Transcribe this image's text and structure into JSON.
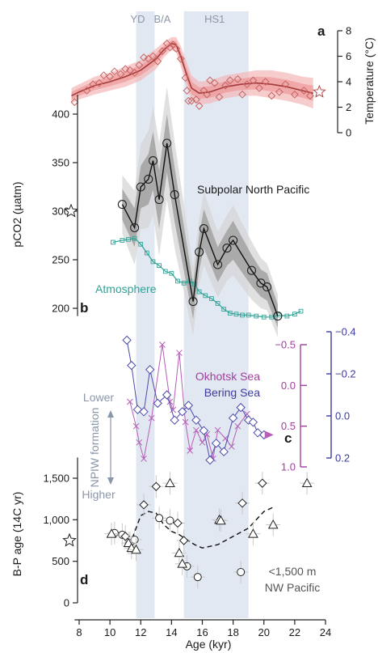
{
  "chart_data": {
    "type": "multi-panel-line-scatter",
    "x_axis": {
      "label": "Age (kyr)",
      "range": [
        7,
        24
      ],
      "ticks": [
        8,
        10,
        12,
        14,
        16,
        18,
        20,
        22,
        24
      ]
    },
    "bands": [
      {
        "label": "YD",
        "x": [
          11.7,
          12.9
        ]
      },
      {
        "label": "B/A",
        "x": [
          12.9,
          14.7
        ]
      },
      {
        "label": "HS1",
        "x": [
          14.8,
          19.0
        ]
      }
    ],
    "band_labels": [
      {
        "text": "YD",
        "x": 11.8
      },
      {
        "text": "B/A",
        "x": 13.4
      },
      {
        "text": "HS1",
        "x": 16.8
      }
    ],
    "panels": {
      "a": {
        "letter": "a",
        "y_label": "Temperature (°C)",
        "y_range": [
          0,
          8
        ],
        "y_ticks": [
          "0",
          "2",
          "4",
          "6",
          "8"
        ],
        "x_ticks": [
          "8",
          "10",
          "12",
          "14",
          "16",
          "18",
          "20",
          "22",
          "24"
        ],
        "color": "#e06262",
        "star_value": 3.2,
        "mean_line": [
          [
            7.5,
            2.9
          ],
          [
            8,
            3.2
          ],
          [
            9,
            3.7
          ],
          [
            10,
            4.0
          ],
          [
            11,
            4.4
          ],
          [
            12,
            4.9
          ],
          [
            13,
            5.8
          ],
          [
            13.5,
            6.5
          ],
          [
            14,
            7.0
          ],
          [
            14.3,
            6.9
          ],
          [
            14.6,
            6.0
          ],
          [
            15,
            4.5
          ],
          [
            15.3,
            3.5
          ],
          [
            15.8,
            3.1
          ],
          [
            16.5,
            3.2
          ],
          [
            17.5,
            3.6
          ],
          [
            18.5,
            3.8
          ],
          [
            19.5,
            3.9
          ],
          [
            20.5,
            3.8
          ],
          [
            21.5,
            3.6
          ],
          [
            22.5,
            3.3
          ],
          [
            23.2,
            3.1
          ]
        ],
        "band_halfwidth": [
          0.6,
          0.6,
          0.7,
          0.7,
          0.8,
          0.8,
          0.8,
          0.6,
          0.5,
          0.6,
          0.8,
          1.0,
          1.0,
          0.9,
          0.9,
          0.9,
          0.9,
          1.0,
          1.1,
          1.1,
          1.1,
          1.2
        ],
        "points": [
          [
            7.7,
            2.4
          ],
          [
            8.5,
            3.3
          ],
          [
            8.9,
            3.8
          ],
          [
            9.3,
            3.9
          ],
          [
            9.6,
            4.5
          ],
          [
            10.0,
            4.4
          ],
          [
            10.3,
            4.8
          ],
          [
            10.7,
            4.6
          ],
          [
            11.0,
            5.0
          ],
          [
            11.3,
            4.9
          ],
          [
            11.6,
            4.7
          ],
          [
            11.9,
            5.3
          ],
          [
            12.2,
            5.9
          ],
          [
            12.5,
            5.8
          ],
          [
            12.8,
            6.0
          ],
          [
            13.1,
            5.6
          ],
          [
            13.4,
            6.4
          ],
          [
            13.7,
            7.0
          ],
          [
            13.9,
            6.7
          ],
          [
            14.1,
            6.9
          ],
          [
            14.3,
            6.6
          ],
          [
            14.6,
            5.8
          ],
          [
            14.9,
            4.3
          ],
          [
            15.0,
            3.3
          ],
          [
            15.1,
            2.5
          ],
          [
            15.3,
            2.5
          ],
          [
            15.6,
            2.6
          ],
          [
            15.8,
            2.1
          ],
          [
            16.1,
            3.3
          ],
          [
            16.3,
            3.0
          ],
          [
            16.5,
            4.1
          ],
          [
            16.8,
            3.9
          ],
          [
            17.1,
            2.8
          ],
          [
            17.5,
            3.7
          ],
          [
            17.8,
            4.1
          ],
          [
            18.3,
            4.2
          ],
          [
            18.6,
            3.0
          ],
          [
            18.9,
            3.8
          ],
          [
            19.3,
            4.1
          ],
          [
            19.7,
            3.5
          ],
          [
            20.1,
            4.0
          ],
          [
            20.5,
            2.9
          ],
          [
            21.0,
            3.2
          ],
          [
            21.4,
            3.8
          ],
          [
            22.0,
            3.0
          ],
          [
            22.6,
            3.3
          ],
          [
            23.0,
            2.9
          ]
        ]
      },
      "b": {
        "letter": "b",
        "y_label": "pCO2 (µatm)",
        "y_range": [
          185,
          425
        ],
        "y_ticks": [
          "200",
          "250",
          "300",
          "350",
          "400"
        ],
        "star_value": 300,
        "pacific_label": "Subpolar North Pacific",
        "atm_label": "Atmosphere",
        "pacific": [
          [
            10.8,
            307
          ],
          [
            11.6,
            283
          ],
          [
            12.0,
            325
          ],
          [
            12.5,
            333
          ],
          [
            12.8,
            352
          ],
          [
            13.2,
            312
          ],
          [
            13.7,
            370
          ],
          [
            14.2,
            317
          ],
          [
            15.4,
            207
          ],
          [
            15.8,
            258
          ],
          [
            16.1,
            282
          ],
          [
            17.0,
            245
          ],
          [
            17.6,
            262
          ],
          [
            18.0,
            270
          ],
          [
            19.2,
            239
          ],
          [
            19.8,
            226
          ],
          [
            20.2,
            222
          ],
          [
            20.9,
            192
          ]
        ],
        "pacific_band_inner": [
          16,
          20,
          22,
          26,
          30,
          30,
          30,
          28,
          18,
          18,
          20,
          18,
          18,
          20,
          16,
          14,
          14,
          12
        ],
        "pacific_band_outer": [
          30,
          38,
          44,
          50,
          56,
          58,
          58,
          55,
          35,
          34,
          38,
          34,
          34,
          36,
          30,
          26,
          24,
          22
        ],
        "atmosphere": [
          [
            10.2,
            268
          ],
          [
            10.8,
            270
          ],
          [
            11.2,
            271
          ],
          [
            11.6,
            272
          ],
          [
            12.0,
            266
          ],
          [
            12.4,
            257
          ],
          [
            12.8,
            248
          ],
          [
            13.2,
            244
          ],
          [
            13.6,
            238
          ],
          [
            14.0,
            236
          ],
          [
            14.4,
            228
          ],
          [
            14.8,
            226
          ],
          [
            15.2,
            228
          ],
          [
            15.5,
            225
          ],
          [
            15.8,
            217
          ],
          [
            16.2,
            213
          ],
          [
            16.6,
            210
          ],
          [
            17.0,
            205
          ],
          [
            17.4,
            199
          ],
          [
            17.8,
            195
          ],
          [
            18.2,
            194
          ],
          [
            18.6,
            193
          ],
          [
            19.0,
            193
          ],
          [
            19.5,
            192
          ],
          [
            20.0,
            191
          ],
          [
            20.5,
            191
          ],
          [
            21.0,
            193
          ],
          [
            21.5,
            192
          ],
          [
            22.0,
            194
          ],
          [
            22.4,
            197
          ]
        ]
      },
      "c": {
        "letter": "c",
        "okhotsk_label": "Okhotsk Sea",
        "bering_label": "Bering Sea",
        "okhotsk_color": "#b65eb8",
        "bering_color": "#4a4aac",
        "okhotsk_range": [
          -0.5,
          1.0
        ],
        "okhotsk_ticks": [
          "−0.5",
          "0.0",
          "0.5",
          "1.0"
        ],
        "bering_range": [
          -0.4,
          0.2
        ],
        "bering_ticks": [
          "−0.4",
          "−0.2",
          "0.0",
          "0.2"
        ],
        "npiw_lower": "Lower",
        "npiw_mid": "NPIW formation",
        "npiw_higher": "Higher",
        "okhotsk": [
          [
            11.3,
            0.2
          ],
          [
            11.7,
            0.5
          ],
          [
            11.9,
            0.7
          ],
          [
            12.2,
            0.9
          ],
          [
            12.7,
            0.4
          ],
          [
            13.4,
            -0.5
          ],
          [
            13.9,
            0.2
          ],
          [
            14.1,
            0.3
          ],
          [
            14.5,
            -0.4
          ],
          [
            14.9,
            0.45
          ],
          [
            15.2,
            0.8
          ],
          [
            15.6,
            0.55
          ],
          [
            16.0,
            0.7
          ],
          [
            16.3,
            0.6
          ],
          [
            16.7,
            0.9
          ],
          [
            17.0,
            0.55
          ],
          [
            17.5,
            0.65
          ],
          [
            17.9,
            0.75
          ],
          [
            18.3,
            0.5
          ],
          [
            18.9,
            0.35
          ]
        ],
        "bering": [
          [
            11.1,
            -0.36
          ],
          [
            11.4,
            -0.24
          ],
          [
            11.8,
            -0.03
          ],
          [
            12.2,
            -0.02
          ],
          [
            12.6,
            -0.22
          ],
          [
            13.1,
            -0.06
          ],
          [
            13.7,
            -0.1
          ],
          [
            14.2,
            0.02
          ],
          [
            14.7,
            -0.02
          ],
          [
            15.1,
            -0.05
          ],
          [
            15.6,
            0.02
          ],
          [
            16.1,
            0.07
          ],
          [
            16.5,
            0.21
          ],
          [
            16.9,
            0.13
          ],
          [
            17.4,
            0.17
          ],
          [
            18.0,
            0.01
          ],
          [
            18.5,
            -0.04
          ],
          [
            19.0,
            0.02
          ],
          [
            19.3,
            0.03
          ],
          [
            19.6,
            0.08
          ],
          [
            20.0,
            0.09
          ]
        ]
      },
      "d": {
        "letter": "d",
        "y_label": "B-P age (14C yr)",
        "y_range": [
          0,
          1800
        ],
        "y_ticks": [
          "0",
          "500",
          "1,000",
          "1,500"
        ],
        "star_value": 750,
        "note_line1": "<1,500 m",
        "note_line2": "NW Pacific",
        "circles": [
          [
            10.3,
            840
          ],
          [
            10.8,
            820
          ],
          [
            11.3,
            720
          ],
          [
            11.6,
            760
          ],
          [
            13.2,
            1020
          ],
          [
            13.9,
            990
          ],
          [
            15.0,
            440
          ],
          [
            15.7,
            310
          ],
          [
            18.5,
            370
          ]
        ],
        "diamonds": [
          [
            11.0,
            800
          ],
          [
            12.2,
            1180
          ],
          [
            13.0,
            1400
          ],
          [
            14.4,
            960
          ],
          [
            14.8,
            750
          ],
          [
            18.6,
            1200
          ],
          [
            19.9,
            1440
          ]
        ],
        "triangles": [
          [
            10.1,
            830
          ],
          [
            11.2,
            720
          ],
          [
            11.4,
            660
          ],
          [
            11.7,
            640
          ],
          [
            13.9,
            1440
          ],
          [
            14.5,
            600
          ],
          [
            14.7,
            470
          ],
          [
            17.1,
            1000
          ],
          [
            17.2,
            990
          ],
          [
            19.3,
            830
          ],
          [
            20.6,
            940
          ],
          [
            22.8,
            1440
          ]
        ],
        "trend": [
          [
            11.0,
            720
          ],
          [
            11.5,
            800
          ],
          [
            12.0,
            1050
          ],
          [
            12.5,
            1100
          ],
          [
            13.0,
            1080
          ],
          [
            13.5,
            940
          ],
          [
            14.0,
            860
          ],
          [
            14.5,
            820
          ],
          [
            15.0,
            760
          ],
          [
            15.5,
            700
          ],
          [
            16.0,
            660
          ],
          [
            17.0,
            700
          ],
          [
            18.0,
            800
          ],
          [
            19.0,
            900
          ],
          [
            20.0,
            1100
          ],
          [
            20.6,
            1150
          ]
        ]
      }
    }
  }
}
